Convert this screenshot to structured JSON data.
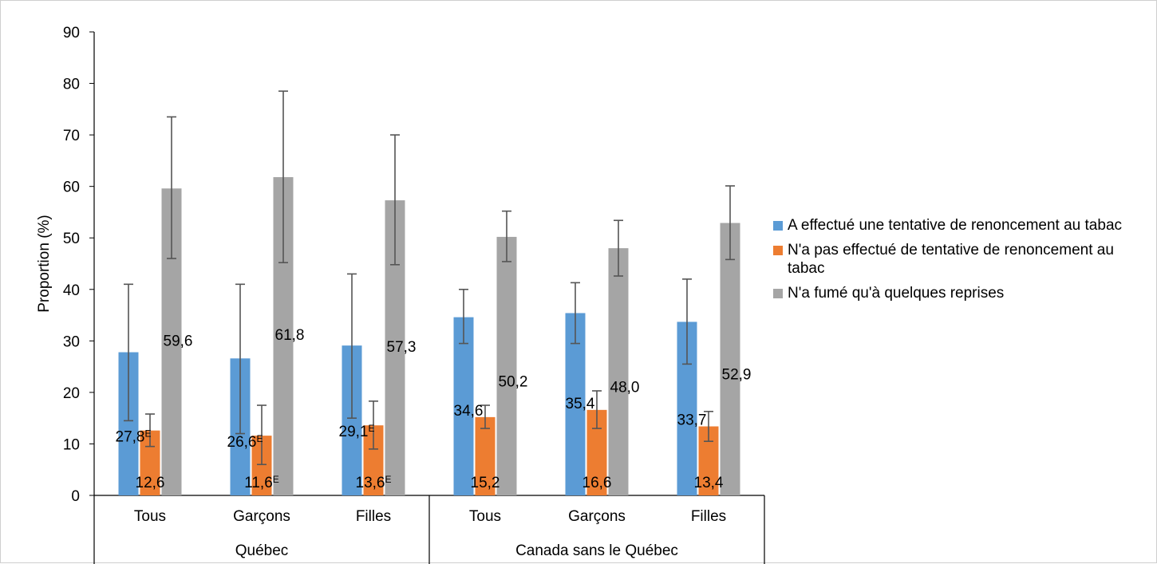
{
  "chart_data": {
    "type": "bar",
    "ylabel": "Proportion (%)",
    "ylim": [
      0,
      90
    ],
    "yticks": [
      "0",
      "10",
      "20",
      "30",
      "40",
      "50",
      "60",
      "70",
      "80",
      "90"
    ],
    "groups": [
      {
        "name": "Québec",
        "categories": [
          "Tous",
          "Garçons",
          "Filles"
        ]
      },
      {
        "name": "Canada sans le Québec",
        "categories": [
          "Tous",
          "Garçons",
          "Filles"
        ]
      }
    ],
    "categories": [
      "Tous",
      "Garçons",
      "Filles",
      "Tous",
      "Garçons",
      "Filles"
    ],
    "series": [
      {
        "name": "A effectué une tentative de renoncement au tabac",
        "color": "#5B9BD5",
        "values": [
          27.8,
          26.6,
          29.1,
          34.6,
          35.4,
          33.7
        ],
        "labels": [
          "27,8",
          "26,6",
          "29,1",
          "34,6",
          "35,4",
          "33,7"
        ],
        "flags": [
          "E",
          "E",
          "E",
          "",
          "",
          ""
        ],
        "err_low": [
          14.5,
          12.0,
          15.0,
          29.5,
          29.5,
          25.5
        ],
        "err_high": [
          41.0,
          41.0,
          43.0,
          40.0,
          41.3,
          42.0
        ]
      },
      {
        "name": "N'a pas effectué de tentative de renoncement au tabac",
        "color": "#ED7D31",
        "values": [
          12.6,
          11.6,
          13.6,
          15.2,
          16.6,
          13.4
        ],
        "labels": [
          "12,6",
          "11,6",
          "13,6",
          "15,2",
          "16,6",
          "13,4"
        ],
        "flags": [
          "",
          "E",
          "E",
          "",
          "",
          ""
        ],
        "err_low": [
          9.5,
          6.0,
          9.0,
          13.0,
          13.0,
          10.5
        ],
        "err_high": [
          15.8,
          17.5,
          18.3,
          17.5,
          20.3,
          16.3
        ]
      },
      {
        "name": "N'a fumé qu'à quelques reprises",
        "color": "#A5A5A5",
        "values": [
          59.6,
          61.8,
          57.3,
          50.2,
          48.0,
          52.9
        ],
        "labels": [
          "59,6",
          "61,8",
          "57,3",
          "50,2",
          "48,0",
          "52,9"
        ],
        "flags": [
          "",
          "",
          "",
          "",
          "",
          ""
        ],
        "err_low": [
          46.0,
          45.2,
          44.8,
          45.4,
          42.6,
          45.8
        ],
        "err_high": [
          73.5,
          78.5,
          70.0,
          55.2,
          53.4,
          60.1
        ]
      }
    ],
    "legend_position": "right",
    "grid": false
  }
}
